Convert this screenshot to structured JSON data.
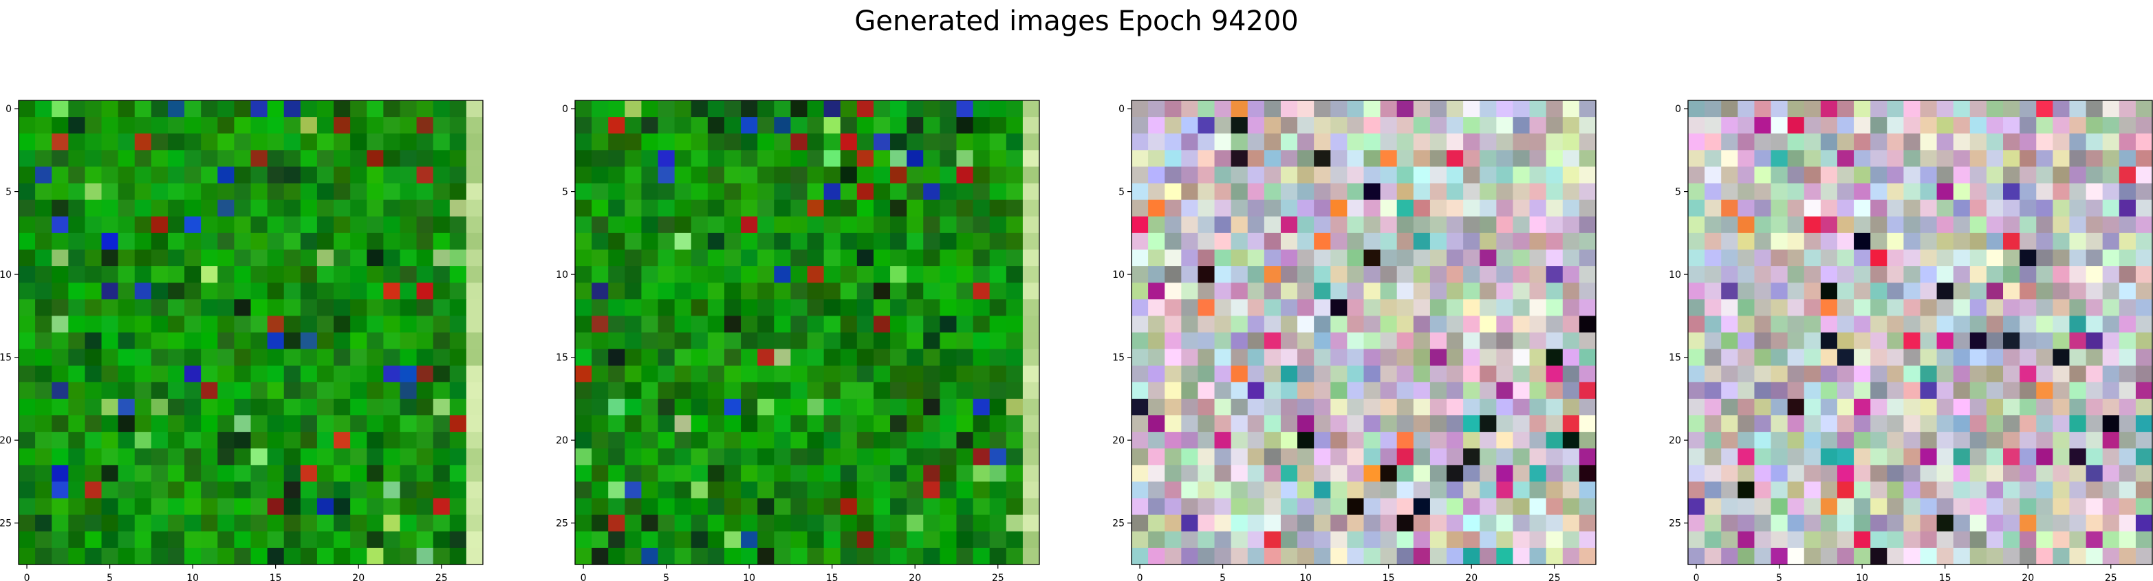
{
  "figure": {
    "title": "Generated images Epoch 94200"
  },
  "chart_data": [
    {
      "type": "heatmap",
      "grid_size": [
        28,
        28
      ],
      "palette": "green",
      "x_ticks": [
        "0",
        "5",
        "10",
        "15",
        "20",
        "25"
      ],
      "y_ticks": [
        "0",
        "5",
        "10",
        "15",
        "20",
        "25"
      ],
      "xlim": [
        -0.5,
        27.5
      ],
      "ylim": [
        27.5,
        -0.5
      ],
      "seed": 11,
      "grid": false
    },
    {
      "type": "heatmap",
      "grid_size": [
        28,
        28
      ],
      "palette": "green",
      "x_ticks": [
        "0",
        "5",
        "10",
        "15",
        "20",
        "25"
      ],
      "y_ticks": [
        "0",
        "5",
        "10",
        "15",
        "20",
        "25"
      ],
      "xlim": [
        -0.5,
        27.5
      ],
      "ylim": [
        27.5,
        -0.5
      ],
      "seed": 23,
      "grid": false
    },
    {
      "type": "heatmap",
      "grid_size": [
        28,
        28
      ],
      "palette": "pastel",
      "x_ticks": [
        "0",
        "5",
        "10",
        "15",
        "20",
        "25"
      ],
      "y_ticks": [
        "0",
        "5",
        "10",
        "15",
        "20",
        "25"
      ],
      "xlim": [
        -0.5,
        27.5
      ],
      "ylim": [
        27.5,
        -0.5
      ],
      "seed": 37,
      "grid": false
    },
    {
      "type": "heatmap",
      "grid_size": [
        28,
        28
      ],
      "palette": "pastel",
      "x_ticks": [
        "0",
        "5",
        "10",
        "15",
        "20",
        "25"
      ],
      "y_ticks": [
        "0",
        "5",
        "10",
        "15",
        "20",
        "25"
      ],
      "xlim": [
        -0.5,
        27.5
      ],
      "ylim": [
        27.5,
        -0.5
      ],
      "seed": 53,
      "grid": false
    }
  ]
}
